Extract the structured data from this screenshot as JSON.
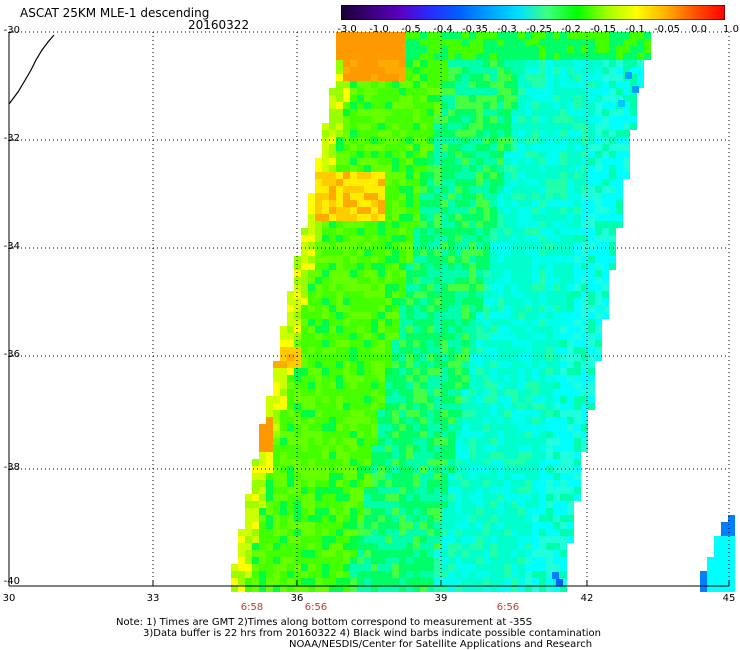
{
  "title": "ASCAT 25KM MLE-1 descending",
  "date": "20160322",
  "colorbar": {
    "ticks": [
      "-3.0",
      "-1.0",
      "-0.5",
      "-0.4",
      "-0.35",
      "-0.3",
      "-0.25",
      "-0.2",
      "-0.15",
      "-0.1",
      "-0.05",
      "0.0",
      "1.0"
    ],
    "colors": [
      "#1a0033",
      "#3a007a",
      "#5a00c0",
      "#2a2aff",
      "#0060ff",
      "#00a0ff",
      "#00e0ff",
      "#40ff80",
      "#00ff00",
      "#a0ff00",
      "#ffff00",
      "#ffb000",
      "#ff5000",
      "#ff0000"
    ]
  },
  "map": {
    "lat_labels": [
      "-30",
      "-32",
      "-34",
      "-36",
      "-38",
      "-40"
    ],
    "lon_labels": [
      "30",
      "33",
      "36",
      "39",
      "42",
      "45"
    ],
    "time_labels": [
      "6:58",
      "6:56",
      "6:56"
    ]
  },
  "notes": {
    "line1": "Note: 1) Times are GMT 2)Times along bottom correspond to measurement at -35S",
    "line2": "3)Data buffer is 22 hrs from 20160322 4) Black wind barbs indicate possible contamination",
    "line3": "NOAA/NESDIS/Center for Satellite Applications and Research"
  }
}
